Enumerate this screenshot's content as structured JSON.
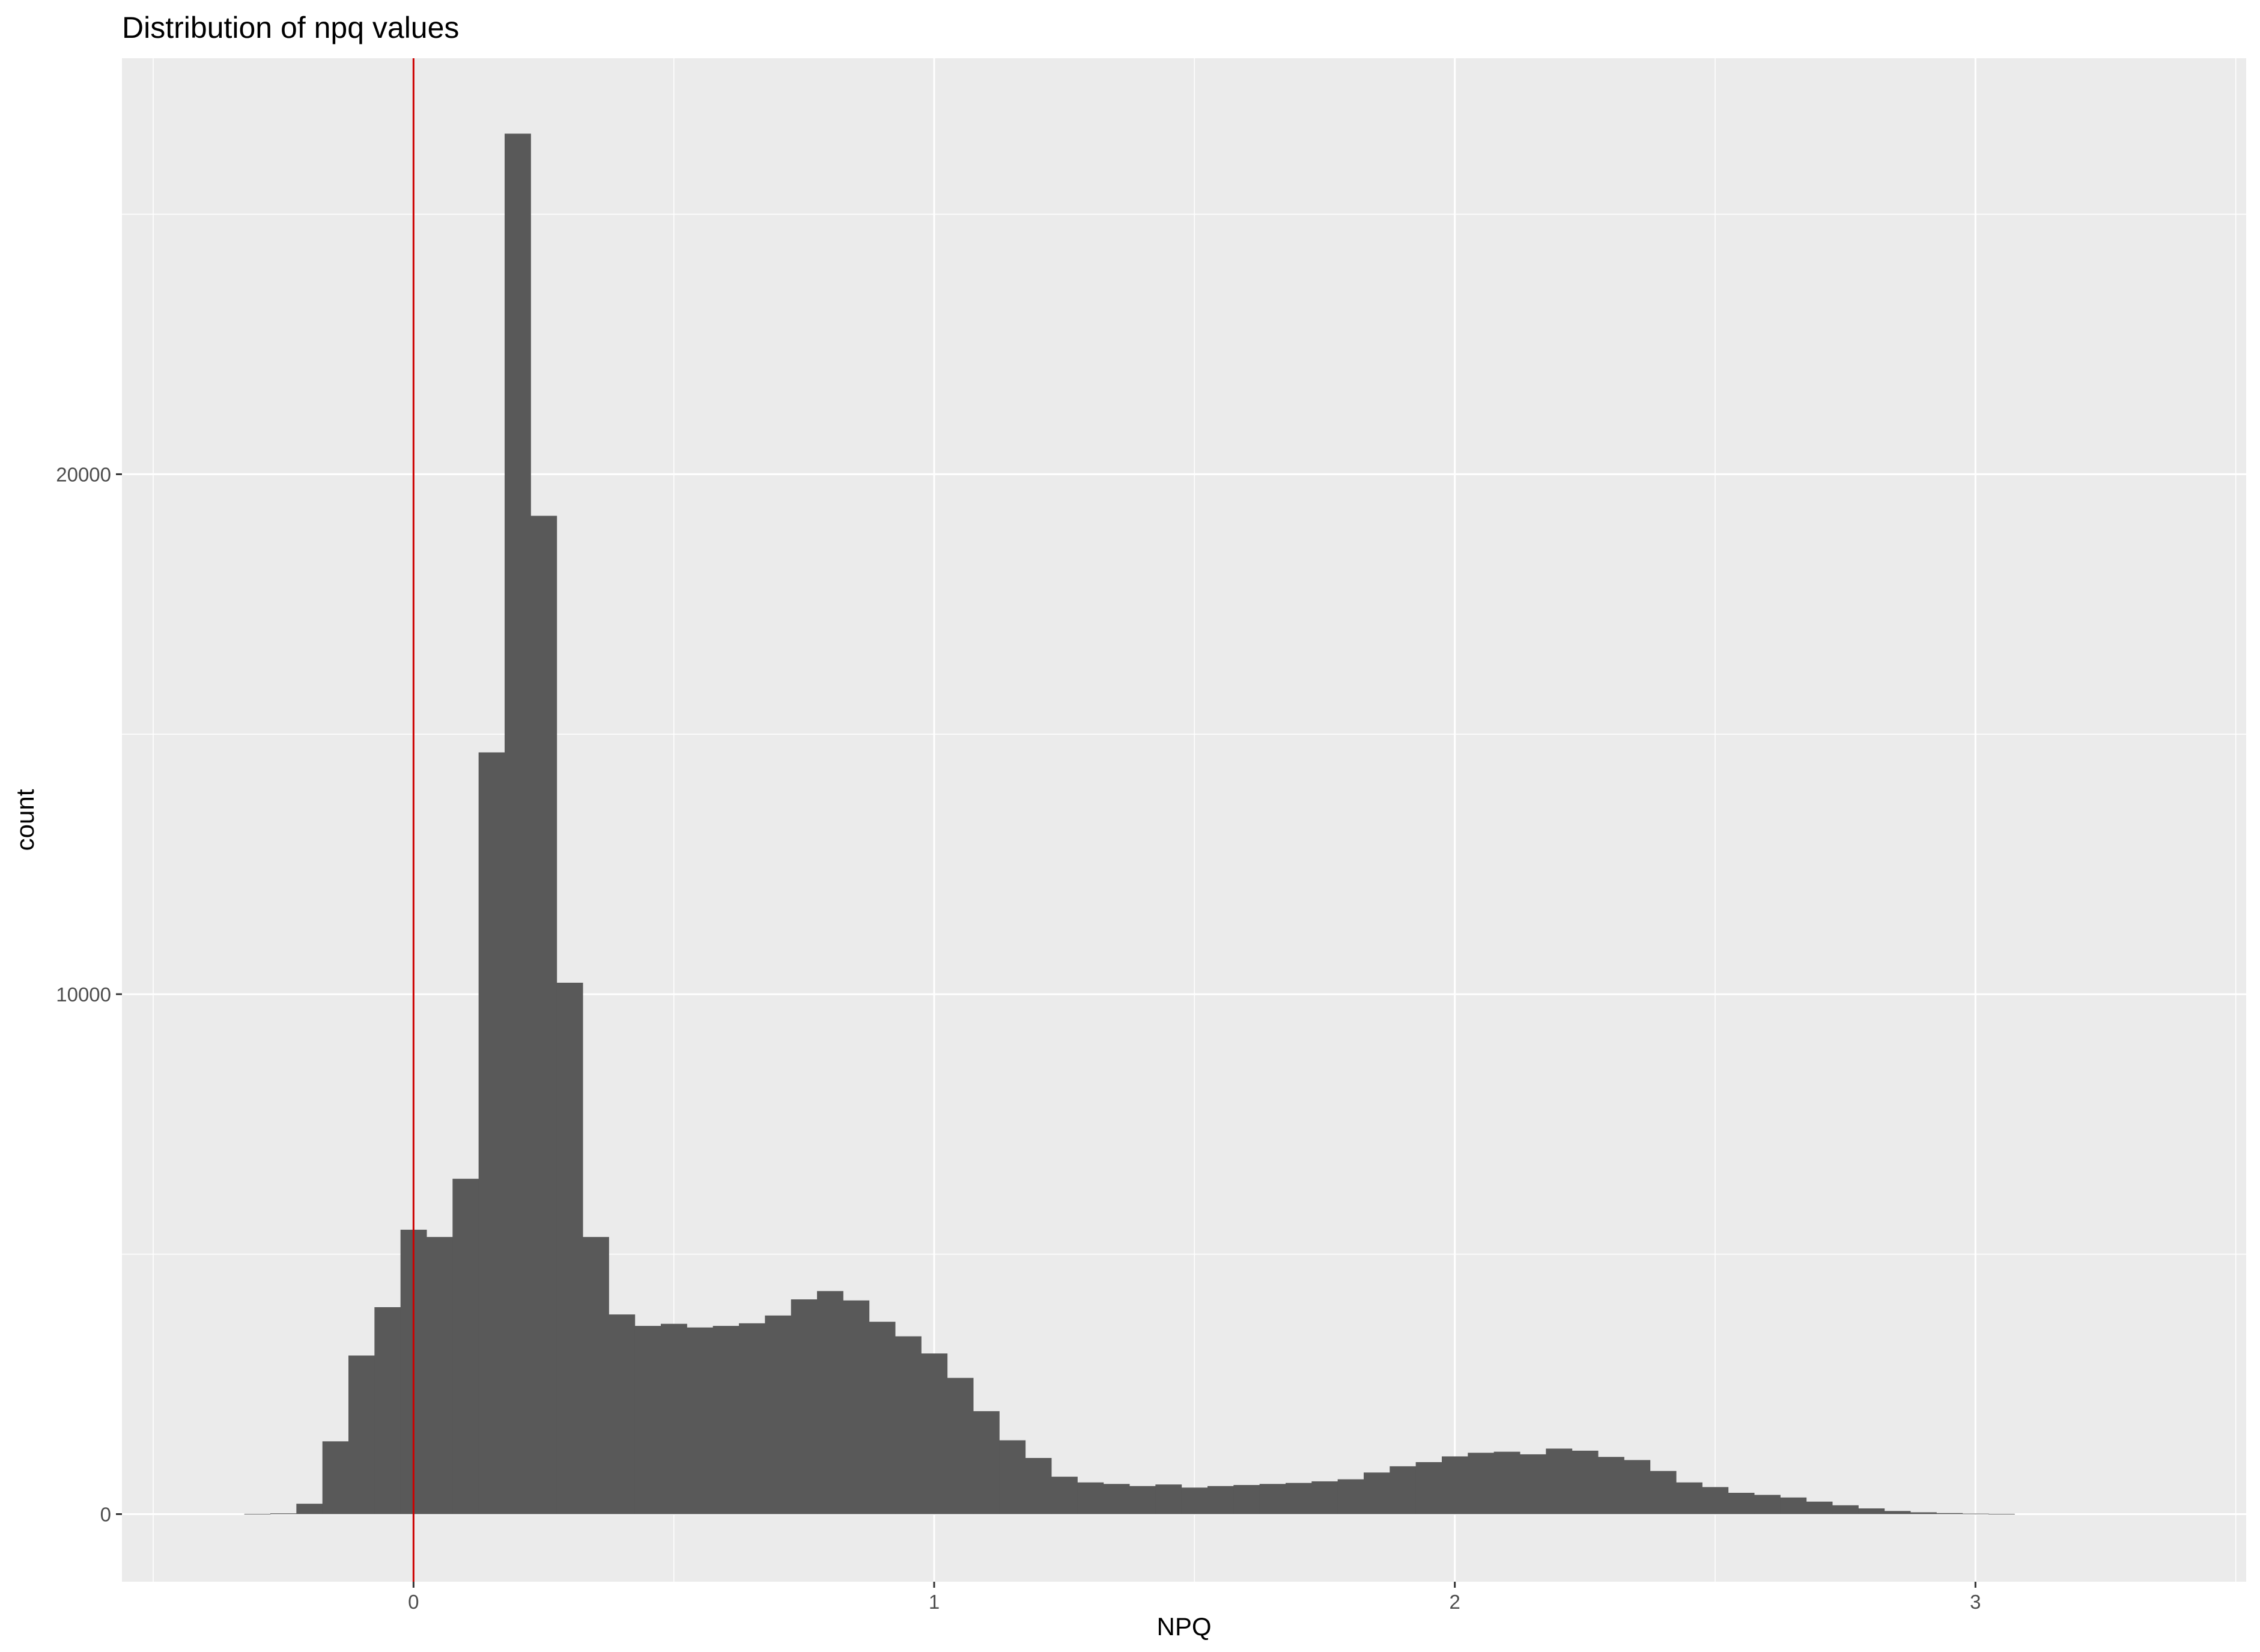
{
  "chart_data": {
    "type": "bar",
    "title": "Distribution of npq values",
    "xlabel": "NPQ",
    "ylabel": "count",
    "xlim": [
      -0.56,
      3.52
    ],
    "ylim": [
      -1300,
      28000
    ],
    "x_ticks": [
      0,
      1,
      2,
      3
    ],
    "x_tick_labels": [
      "0",
      "1",
      "2",
      "3"
    ],
    "y_ticks": [
      0,
      10000,
      20000
    ],
    "y_tick_labels": [
      "0",
      "10000",
      "20000"
    ],
    "x_minor_grid": [
      -0.5,
      0.5,
      1.5,
      2.5,
      3.5
    ],
    "y_minor_grid": [
      5000,
      15000,
      25000
    ],
    "grid": true,
    "legend": "none",
    "background": "#ebebeb",
    "bar_color": "#595959",
    "reference_line": {
      "x": 0,
      "color": "#cc0000"
    },
    "bin_width": 0.05,
    "bins_start": [
      -0.325,
      -0.275,
      -0.225,
      -0.175,
      -0.125,
      -0.075,
      -0.025,
      0.025,
      0.075,
      0.125,
      0.175,
      0.225,
      0.275,
      0.325,
      0.375,
      0.425,
      0.475,
      0.525,
      0.575,
      0.625,
      0.675,
      0.725,
      0.775,
      0.825,
      0.875,
      0.925,
      0.975,
      1.025,
      1.075,
      1.125,
      1.175,
      1.225,
      1.275,
      1.325,
      1.375,
      1.425,
      1.475,
      1.525,
      1.575,
      1.625,
      1.675,
      1.725,
      1.775,
      1.825,
      1.875,
      1.925,
      1.975,
      2.025,
      2.075,
      2.125,
      2.175,
      2.225,
      2.275,
      2.325,
      2.375,
      2.425,
      2.475,
      2.525,
      2.575,
      2.625,
      2.675,
      2.725,
      2.775,
      2.825,
      2.875,
      2.925,
      2.975,
      3.025
    ],
    "values": [
      5,
      15,
      200,
      1400,
      3050,
      3980,
      5470,
      5330,
      6450,
      14650,
      26550,
      19200,
      10220,
      5330,
      3840,
      3620,
      3660,
      3590,
      3620,
      3670,
      3820,
      4130,
      4290,
      4110,
      3700,
      3420,
      3090,
      2620,
      1980,
      1420,
      1080,
      720,
      610,
      580,
      540,
      570,
      510,
      540,
      560,
      580,
      600,
      630,
      670,
      800,
      920,
      1000,
      1110,
      1180,
      1200,
      1150,
      1260,
      1220,
      1100,
      1040,
      830,
      610,
      520,
      410,
      370,
      320,
      240,
      170,
      110,
      60,
      35,
      20,
      10,
      5
    ]
  }
}
